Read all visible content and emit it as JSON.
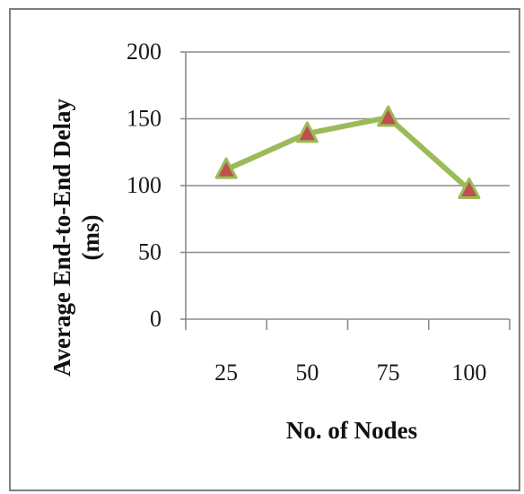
{
  "chart_data": {
    "type": "line",
    "title": "",
    "xlabel": "No. of Nodes",
    "ylabel_line1": "Average End-to-End Delay",
    "ylabel_line2": "(ms)",
    "categories": [
      "25",
      "50",
      "75",
      "100"
    ],
    "series": [
      {
        "values": [
          112,
          139,
          151,
          97
        ],
        "line_color": "#9bbb59",
        "marker": "triangle",
        "marker_fill": "#c0504d",
        "marker_edge": "#9bbb59"
      }
    ],
    "ylim": [
      0,
      200
    ],
    "yticks": [
      "0",
      "50",
      "100",
      "150",
      "200"
    ],
    "ytick_values": [
      0,
      50,
      100,
      150,
      200
    ],
    "grid": "horizontal",
    "legend": "none",
    "colors": {
      "gridline": "#8c8c8c",
      "frame": "#7f7f7f"
    }
  }
}
